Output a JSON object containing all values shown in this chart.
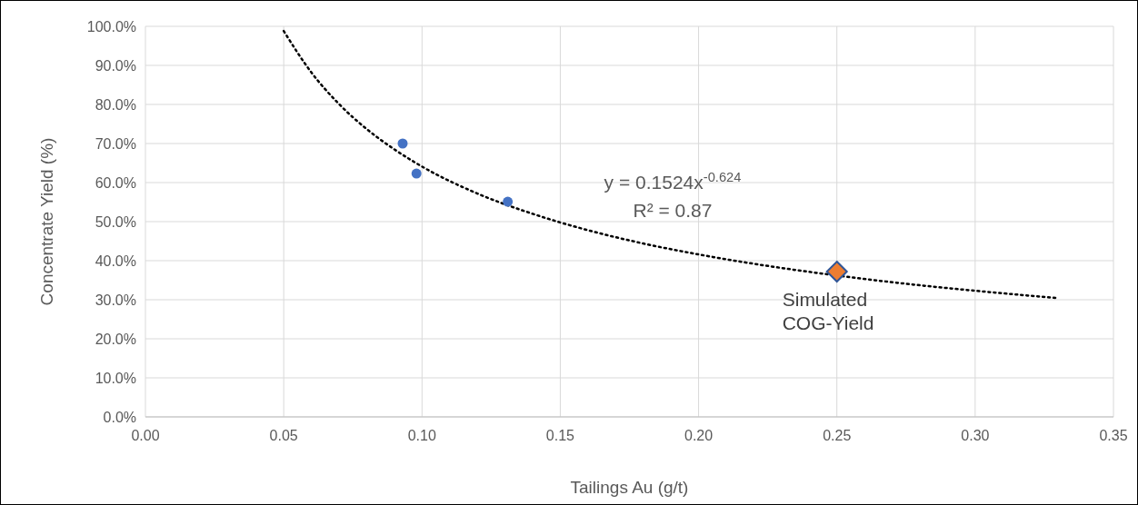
{
  "chart_data": {
    "type": "scatter",
    "xlabel": "Tailings Au (g/t)",
    "ylabel": "Concentrate Yield (%)",
    "xlim": [
      0,
      0.35
    ],
    "ylim": [
      0,
      100
    ],
    "xticks": [
      {
        "value": 0,
        "label": "0.00"
      },
      {
        "value": 0.05,
        "label": "0.05"
      },
      {
        "value": 0.1,
        "label": "0.10"
      },
      {
        "value": 0.15,
        "label": "0.15"
      },
      {
        "value": 0.2,
        "label": "0.20"
      },
      {
        "value": 0.25,
        "label": "0.25"
      },
      {
        "value": 0.3,
        "label": "0.30"
      },
      {
        "value": 0.35,
        "label": "0.35"
      }
    ],
    "yticks": [
      {
        "value": 0,
        "label": "0.0%"
      },
      {
        "value": 10,
        "label": "10.0%"
      },
      {
        "value": 20,
        "label": "20.0%"
      },
      {
        "value": 30,
        "label": "30.0%"
      },
      {
        "value": 40,
        "label": "40.0%"
      },
      {
        "value": 50,
        "label": "50.0%"
      },
      {
        "value": 60,
        "label": "60.0%"
      },
      {
        "value": 70,
        "label": "70.0%"
      },
      {
        "value": 80,
        "label": "80.0%"
      },
      {
        "value": 90,
        "label": "90.0%"
      },
      {
        "value": 100,
        "label": "100.0%"
      }
    ],
    "grid": true,
    "series": [
      {
        "type": "line",
        "color": "#000000",
        "line_style": "dotted",
        "marker": "none",
        "x": [
          0.05,
          0.06,
          0.07,
          0.08,
          0.09,
          0.1,
          0.12,
          0.14,
          0.16,
          0.18,
          0.2,
          0.22,
          0.25,
          0.28,
          0.3,
          0.33
        ],
        "values": [
          98.8,
          88.2,
          80.1,
          73.7,
          68.5,
          64.1,
          57.2,
          52.0,
          47.8,
          44.4,
          41.6,
          39.2,
          36.2,
          33.7,
          32.3,
          30.4
        ]
      },
      {
        "color": "#4472c4",
        "marker": "circle",
        "x": [
          0.093,
          0.098,
          0.131
        ],
        "values": [
          70.0,
          62.3,
          55.1
        ]
      },
      {
        "color": "#ed7d31",
        "marker": "diamond",
        "x": [
          0.25
        ],
        "values": [
          37.2
        ]
      }
    ],
    "annotations": [
      "y = 0.1524x$^{-0.624}$",
      "R² = 0.87",
      {
        "text": "Simulated COG-Yield",
        "x": 0.25,
        "y": 37.2
      }
    ]
  }
}
